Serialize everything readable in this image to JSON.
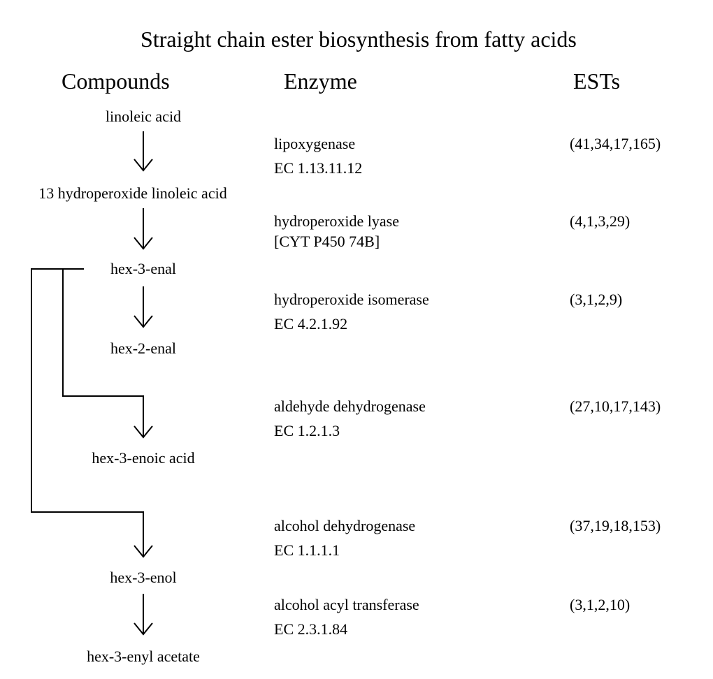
{
  "title": "Straight chain ester biosynthesis from fatty acids",
  "headers": {
    "compounds": "Compounds",
    "enzyme": "Enzyme",
    "ests": "ESTs"
  },
  "compounds": [
    "linoleic acid",
    "13 hydroperoxide linoleic acid",
    "hex-3-enal",
    "hex-2-enal",
    "hex-3-enoic acid",
    "hex-3-enol",
    "hex-3-enyl acetate"
  ],
  "steps": [
    {
      "enzyme": "lipoxygenase",
      "ec": "EC 1.13.11.12",
      "ests": "(41,34,17,165)"
    },
    {
      "enzyme": "hydroperoxide lyase",
      "ec": "[CYT P450 74B]",
      "ests": "(4,1,3,29)"
    },
    {
      "enzyme": "hydroperoxide isomerase",
      "ec": "EC 4.2.1.92",
      "ests": "(3,1,2,9)"
    },
    {
      "enzyme": "aldehyde dehydrogenase",
      "ec": "EC 1.2.1.3",
      "ests": "(27,10,17,143)"
    },
    {
      "enzyme": "alcohol dehydrogenase",
      "ec": "EC 1.1.1.1",
      "ests": "(37,19,18,153)"
    },
    {
      "enzyme": "alcohol acyl transferase",
      "ec": "EC 2.3.1.84",
      "ests": "(3,1,2,10)"
    }
  ]
}
